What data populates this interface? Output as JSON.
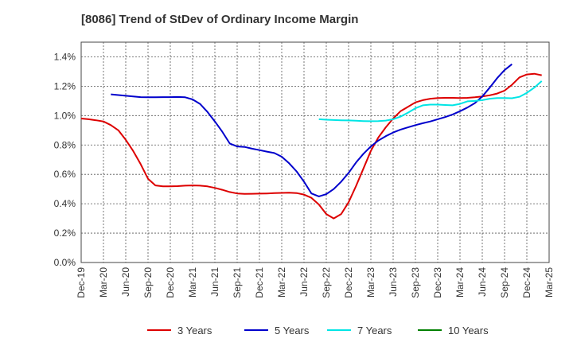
{
  "chart_data": {
    "type": "line",
    "title": "[8086]  Trend of StDev of Ordinary Income Margin",
    "xlabel": "",
    "ylabel": "",
    "x_ticks": [
      "Dec-19",
      "Mar-20",
      "Jun-20",
      "Sep-20",
      "Dec-20",
      "Mar-21",
      "Jun-21",
      "Sep-21",
      "Dec-21",
      "Mar-22",
      "Jun-22",
      "Sep-22",
      "Dec-22",
      "Mar-23",
      "Jun-23",
      "Sep-23",
      "Dec-23",
      "Mar-24",
      "Jun-24",
      "Sep-24",
      "Dec-24",
      "Mar-25"
    ],
    "y_ticks": [
      "0.0%",
      "0.2%",
      "0.4%",
      "0.6%",
      "0.8%",
      "1.0%",
      "1.2%",
      "1.4%"
    ],
    "ylim": [
      0,
      1.5
    ],
    "grid": true,
    "legend_position": "bottom",
    "series": [
      {
        "name": "3 Years",
        "color": "#dd0000",
        "values": [
          0.98,
          0.975,
          0.968,
          0.96,
          0.935,
          0.9,
          0.835,
          0.76,
          0.67,
          0.57,
          0.525,
          0.518,
          0.518,
          0.52,
          0.523,
          0.525,
          0.523,
          0.518,
          0.508,
          0.495,
          0.48,
          0.47,
          0.467,
          0.468,
          0.469,
          0.47,
          0.472,
          0.474,
          0.475,
          0.473,
          0.462,
          0.44,
          0.395,
          0.33,
          0.3,
          0.33,
          0.41,
          0.52,
          0.64,
          0.76,
          0.85,
          0.92,
          0.98,
          1.03,
          1.06,
          1.09,
          1.105,
          1.115,
          1.12,
          1.121,
          1.121,
          1.12,
          1.121,
          1.125,
          1.13,
          1.138,
          1.15,
          1.17,
          1.21,
          1.26,
          1.28,
          1.285,
          1.275
        ]
      },
      {
        "name": "5 Years",
        "color": "#0000cc",
        "values": [
          null,
          null,
          null,
          null,
          1.145,
          1.14,
          1.135,
          1.13,
          1.126,
          1.125,
          1.125,
          1.126,
          1.126,
          1.127,
          1.125,
          1.11,
          1.08,
          1.025,
          0.96,
          0.89,
          0.81,
          0.79,
          0.787,
          0.775,
          0.765,
          0.755,
          0.745,
          0.72,
          0.675,
          0.62,
          0.55,
          0.47,
          0.45,
          0.465,
          0.5,
          0.55,
          0.61,
          0.68,
          0.74,
          0.79,
          0.83,
          0.86,
          0.885,
          0.905,
          0.92,
          0.935,
          0.948,
          0.96,
          0.975,
          0.99,
          1.008,
          1.03,
          1.055,
          1.085,
          1.13,
          1.19,
          1.255,
          1.31,
          1.35
        ]
      },
      {
        "name": "7 Years",
        "color": "#00e5e5",
        "values": [
          null,
          null,
          null,
          null,
          null,
          null,
          null,
          null,
          null,
          null,
          null,
          null,
          null,
          null,
          null,
          null,
          null,
          null,
          null,
          null,
          null,
          null,
          null,
          null,
          null,
          null,
          null,
          null,
          null,
          null,
          null,
          null,
          null,
          null,
          null,
          null,
          null,
          null,
          null,
          null,
          null,
          null,
          null,
          null,
          null,
          null,
          null,
          null,
          null,
          null,
          null,
          null,
          null,
          null,
          null,
          null,
          null,
          null,
          null,
          null,
          null,
          null,
          null
        ]
      },
      {
        "name": "10 Years",
        "color": "#008000",
        "values": []
      }
    ]
  }
}
